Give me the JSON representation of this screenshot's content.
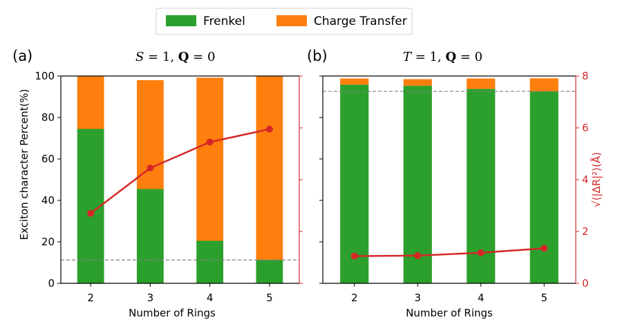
{
  "legend": {
    "items": [
      {
        "label": "Frenkel",
        "color": "#2ca02c"
      },
      {
        "label": "Charge Transfer",
        "color": "#ff7f0e"
      }
    ]
  },
  "panel_a": {
    "letter": "(a)",
    "title_italic": "S",
    "title_rest": " = 1, ",
    "title_bold": "Q",
    "title_end": " = 0"
  },
  "panel_b": {
    "letter": "(b)",
    "title_italic": "T",
    "title_rest": " = 1, ",
    "title_bold": "Q",
    "title_end": " = 0"
  },
  "colors": {
    "frenkel": "#2ca02c",
    "ct": "#ff7f0e",
    "line": "#d62728",
    "dashed": "#808080"
  },
  "chart_data": [
    {
      "type": "bar",
      "panel": "(a)",
      "title": "S = 1, Q = 0",
      "categories": [
        "2",
        "3",
        "4",
        "5"
      ],
      "xlabel": "Number of Rings",
      "ylabel": "Exciton character Percent(%)",
      "ylim": [
        0,
        100
      ],
      "yticks": [
        0,
        20,
        40,
        60,
        80,
        100
      ],
      "series": [
        {
          "name": "Frenkel",
          "values": [
            74.5,
            45.5,
            20.5,
            11.3
          ]
        },
        {
          "name": "Charge Transfer",
          "values": [
            25.5,
            52.5,
            78.7,
            88.7
          ]
        }
      ],
      "dashed_y": 11.3,
      "secondary": {
        "type": "line",
        "ylabel": "√⟨|ΔR|²⟩(Å)",
        "ylim": [
          0,
          8
        ],
        "values": [
          2.7,
          4.45,
          5.45,
          5.95
        ]
      }
    },
    {
      "type": "bar",
      "panel": "(b)",
      "title": "T = 1, Q = 0",
      "categories": [
        "2",
        "3",
        "4",
        "5"
      ],
      "xlabel": "Number of Rings",
      "ylim": [
        0,
        100
      ],
      "series": [
        {
          "name": "Frenkel",
          "values": [
            95.8,
            95.3,
            93.8,
            92.5
          ]
        },
        {
          "name": "Charge Transfer",
          "values": [
            3.0,
            3.2,
            5.0,
            6.4
          ]
        }
      ],
      "dashed_y": 92.6,
      "secondary": {
        "type": "line",
        "ylabel": "√⟨|ΔR|²⟩(Å)",
        "ylim": [
          0,
          8
        ],
        "yticks": [
          0,
          2,
          4,
          6,
          8
        ],
        "values": [
          1.05,
          1.07,
          1.18,
          1.35
        ]
      }
    }
  ]
}
